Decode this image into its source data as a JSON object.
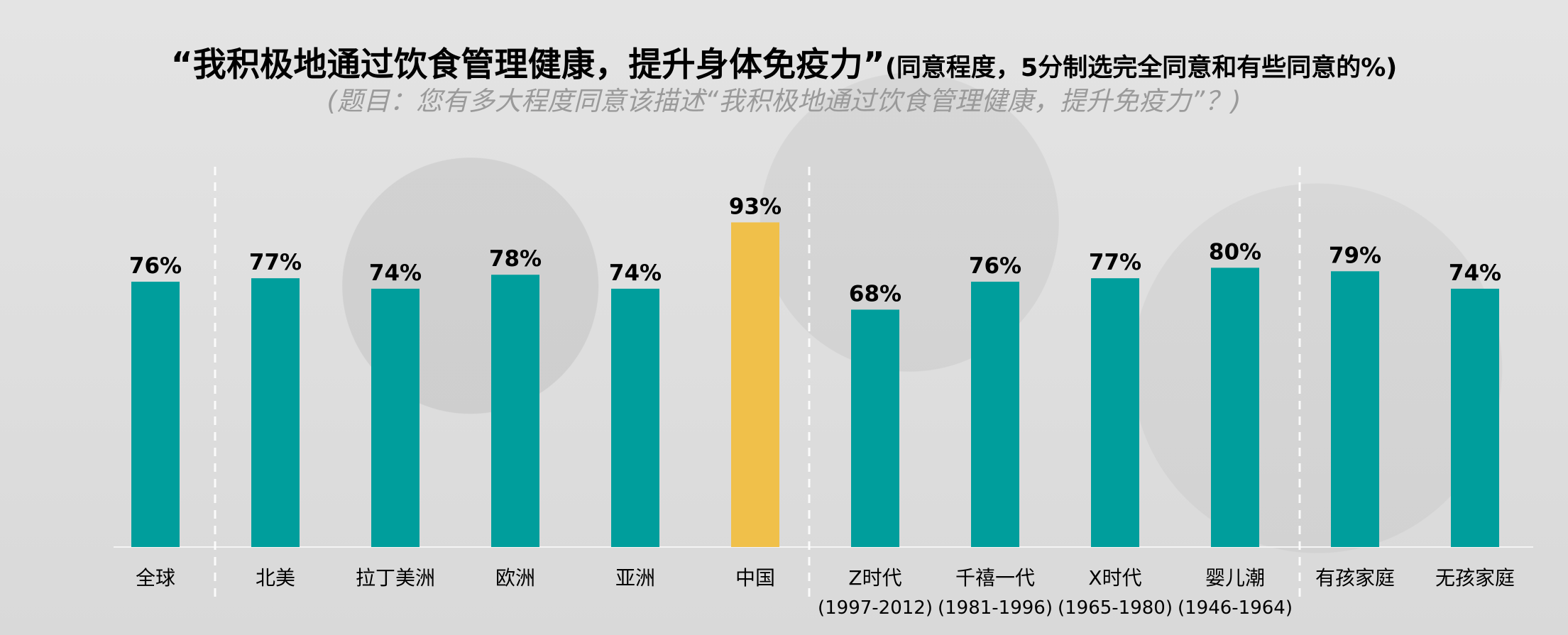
{
  "chart_data": {
    "type": "bar",
    "title": "“我积极地通过饮食管理健康，提升身体免疫力”",
    "title_note": "(同意程度，5分制选完全同意和有些同意的%)",
    "subtitle": "(题目：您有多大程度同意该描述“我积极地通过饮食管理健康，提升免疫力”？)",
    "categories": [
      "全球",
      "北美",
      "拉丁美洲",
      "欧洲",
      "亚洲",
      "中国",
      "Z时代",
      "千禧一代",
      "X时代",
      "婴儿潮",
      "有孩家庭",
      "无孩家庭"
    ],
    "category_sublabels": [
      "",
      "",
      "",
      "",
      "",
      "",
      "(1997-2012)",
      "(1981-1996)",
      "(1965-1980)",
      "(1946-1964)",
      "",
      ""
    ],
    "values": [
      76,
      77,
      74,
      78,
      74,
      93,
      68,
      76,
      77,
      80,
      79,
      74
    ],
    "value_labels": [
      "76%",
      "77%",
      "74%",
      "78%",
      "74%",
      "93%",
      "68%",
      "76%",
      "77%",
      "80%",
      "79%",
      "74%"
    ],
    "highlight_index": 5,
    "colors": {
      "bar": "#009e9c",
      "highlight": "#f0c04a",
      "background": "#dedede",
      "subtitle": "#9a9a9a",
      "divider": "#ffffff"
    },
    "ylim": [
      0,
      100
    ],
    "grid": false,
    "legend": "none"
  }
}
